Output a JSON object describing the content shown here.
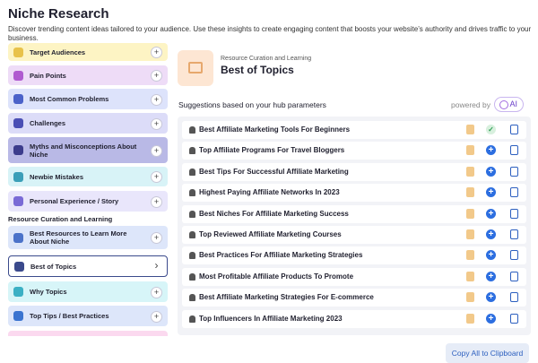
{
  "header": {
    "title": "Niche Research",
    "description": "Discover trending content ideas tailored to your audience. Use these insights to create engaging content that boosts your website’s authority and drives traffic to your business."
  },
  "sidebar": {
    "items": [
      "Target Audiences",
      "Pain Points",
      "Most Common Problems",
      "Challenges",
      "Myths and Misconceptions About Niche",
      "Newbie Mistakes",
      "Personal Experience / Story"
    ],
    "section_label": "Resource Curation and Learning",
    "section_items": [
      "Best Resources to Learn More About Niche",
      "Best of Topics",
      "Why Topics",
      "Top Tips / Best Practices"
    ]
  },
  "panel": {
    "category": "Resource Curation and Learning",
    "title": "Best of Topics",
    "suggestions_heading": "Suggestions based on your hub parameters",
    "powered_by": "powered by",
    "badge": "AI",
    "suggestions": [
      "Best Affiliate Marketing Tools For Beginners",
      "Top Affiliate Programs For Travel Bloggers",
      "Best Tips For Successful Affiliate Marketing",
      "Highest Paying Affiliate Networks In 2023",
      "Best Niches For Affiliate Marketing Success",
      "Top Reviewed Affiliate Marketing Courses",
      "Best Practices For Affiliate Marketing Strategies",
      "Most Profitable Affiliate Products To Promote",
      "Best Affiliate Marketing Strategies For E-commerce",
      "Top Influencers In Affiliate Marketing 2023"
    ],
    "copy_button": "Copy All to Clipboard"
  }
}
